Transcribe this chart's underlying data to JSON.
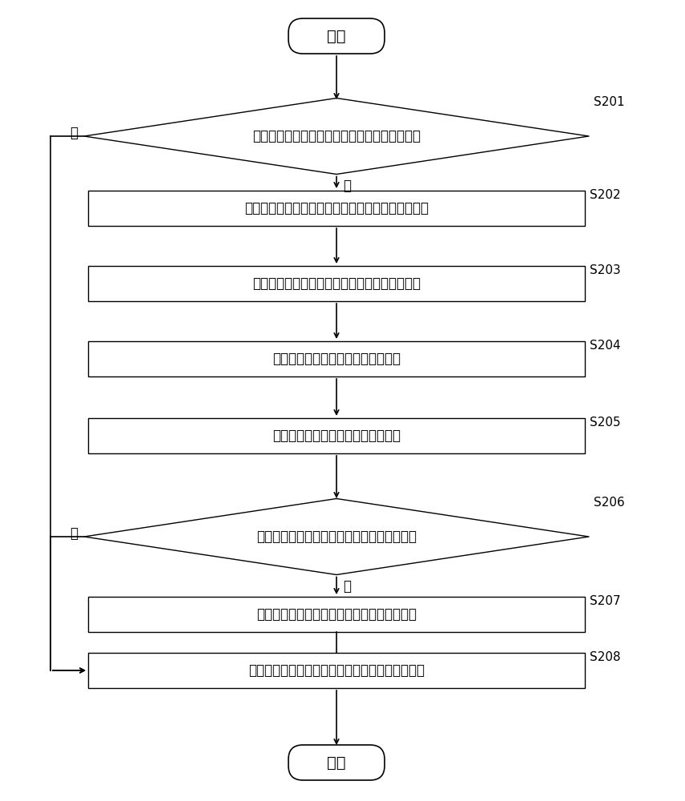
{
  "bg_color": "#ffffff",
  "line_color": "#000000",
  "text_color": "#000000",
  "start_end_text": [
    "开始",
    "结束"
  ],
  "diamond_labels": [
    "S201",
    "S206"
  ],
  "diamond_texts": [
    "搜索周围是否存在具有无线充电功能的供电终端",
    "判断供电终端的电量是否大于等于预设的阈値"
  ],
  "box_labels": [
    "S202",
    "S203",
    "S204",
    "S205",
    "S207",
    "S208"
  ],
  "box_texts": [
    "显示搜索到的具有无线充电功能的供电终端的列表；",
    "接收针对所述列表中的任一供电终端的选择信号",
    "发送电量信息请求到选择的供电终端",
    "接收选择的供电终端返回的电量信息",
    "通过供电终端对移动终端的电池进行无线充电",
    "通过供电终端对移动终端的后台电路进行无线供电"
  ],
  "no_label": "否",
  "yes_label": "是",
  "font_size": 12,
  "label_font_size": 11
}
